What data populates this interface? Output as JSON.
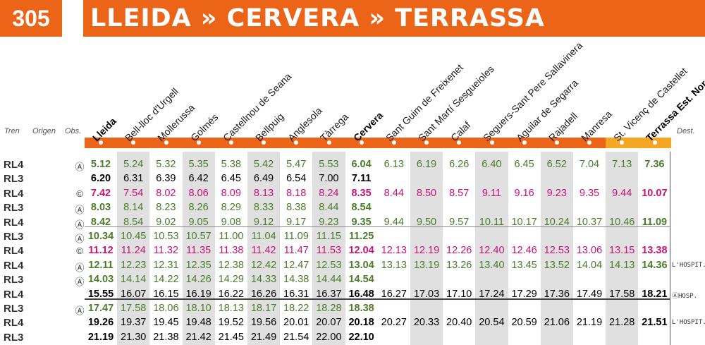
{
  "route_number": "305",
  "route_title": "LLEIDA » CERVERA » TERRASSA",
  "headers": {
    "train": "Tren",
    "origin": "Origen",
    "obs": "Obs.",
    "dest": "Dest."
  },
  "stations": [
    "Lleida",
    "Bell-lloc d'Urgell",
    "Mollerussa",
    "Golmés",
    "Castellnou de Seana",
    "Bellpuig",
    "Anglesola",
    "Tàrrega",
    "Cervera",
    "Sant Guim de Freixenet",
    "Sant Martí Sesgueioles",
    "Calaf",
    "Seguers-Sant Pere Sallavinera",
    "Aguilar de Segarra",
    "Rajadell",
    "Manresa",
    "St. Vicenç de Castellet",
    "Terrassa Est. Nord"
  ],
  "bold_stations": [
    0,
    8,
    17
  ],
  "highlight_stations": [
    16,
    17
  ],
  "colors": {
    "orange": "#ec6418",
    "highlight": "#f5a623",
    "green": "#4a7c2a",
    "magenta": "#cc1177",
    "black": "#000000"
  },
  "rows": [
    {
      "train": "RL4",
      "obs": "Ⓐ",
      "dest": "",
      "color": "green",
      "times": [
        "5.12",
        "5.24",
        "5.32",
        "5.35",
        "5.38",
        "5.42",
        "5.47",
        "5.53",
        "6.04",
        "6.13",
        "6.19",
        "6.26",
        "6.40",
        "6.45",
        "6.52",
        "7.04",
        "7.13",
        "7.36"
      ]
    },
    {
      "train": "RL3",
      "obs": "",
      "dest": "",
      "color": "black",
      "times": [
        "6.20",
        "6.31",
        "6.39",
        "6.42",
        "6.45",
        "6.49",
        "6.54",
        "7.00",
        "7.11",
        "",
        "",
        "",
        "",
        "",
        "",
        "",
        "",
        ""
      ]
    },
    {
      "train": "RL4",
      "obs": "©",
      "dest": "",
      "color": "magenta",
      "times": [
        "7.42",
        "7.54",
        "8.02",
        "8.06",
        "8.09",
        "8.13",
        "8.18",
        "8.24",
        "8.35",
        "8.44",
        "8.50",
        "8.57",
        "9.11",
        "9.16",
        "9.23",
        "9.35",
        "9.44",
        "10.07"
      ]
    },
    {
      "train": "RL3",
      "obs": "Ⓐ",
      "dest": "",
      "color": "green",
      "times": [
        "8.03",
        "8.14",
        "8.23",
        "8.26",
        "8.29",
        "8.33",
        "8.38",
        "8.44",
        "8.54",
        "",
        "",
        "",
        "",
        "",
        "",
        "",
        "",
        ""
      ]
    },
    {
      "train": "RL4",
      "obs": "Ⓐ",
      "dest": "",
      "color": "green",
      "times": [
        "8.42",
        "8.54",
        "9.02",
        "9.05",
        "9.08",
        "9.12",
        "9.17",
        "9.23",
        "9.35",
        "9.44",
        "9.50",
        "9.57",
        "10.11",
        "10.17",
        "10.24",
        "10.37",
        "10.46",
        "11.09"
      ]
    },
    {
      "train": "RL3",
      "obs": "Ⓐ",
      "dest": "",
      "color": "green",
      "times": [
        "10.34",
        "10.45",
        "10.53",
        "10.57",
        "11.00",
        "11.04",
        "11.09",
        "11.15",
        "11.25",
        "",
        "",
        "",
        "",
        "",
        "",
        "",
        "",
        ""
      ]
    },
    {
      "train": "RL4",
      "obs": "©",
      "dest": "",
      "color": "magenta",
      "times": [
        "11.12",
        "11.24",
        "11.32",
        "11.35",
        "11.38",
        "11.42",
        "11.47",
        "11.53",
        "12.04",
        "12.13",
        "12.19",
        "12.26",
        "12.40",
        "12.46",
        "12.53",
        "13.06",
        "13.15",
        "13.38"
      ]
    },
    {
      "train": "RL4",
      "obs": "Ⓐ",
      "dest": "L'HOSPIT.",
      "color": "green",
      "times": [
        "12.11",
        "12.23",
        "12.31",
        "12.35",
        "12.38",
        "12.42",
        "12.47",
        "12.53",
        "13.04",
        "13.13",
        "13.19",
        "13.26",
        "13.40",
        "13.45",
        "13.52",
        "14.04",
        "14.13",
        "14.36"
      ]
    },
    {
      "train": "RL3",
      "obs": "Ⓐ",
      "dest": "",
      "color": "green",
      "times": [
        "14.03",
        "14.14",
        "14.22",
        "14.26",
        "14.29",
        "14.33",
        "14.38",
        "14.44",
        "14.54",
        "",
        "",
        "",
        "",
        "",
        "",
        "",
        "",
        ""
      ]
    },
    {
      "train": "RL4",
      "obs": "",
      "dest": "ⒶHOSP.",
      "color": "black",
      "times": [
        "15.55",
        "16.07",
        "16.15",
        "16.19",
        "16.22",
        "16.26",
        "16.31",
        "16.37",
        "16.48",
        "16.27",
        "17.03",
        "17.10",
        "17.24",
        "17.29",
        "17.36",
        "17.49",
        "17.58",
        "18.21"
      ]
    },
    {
      "train": "RL3",
      "obs": "Ⓐ",
      "dest": "",
      "color": "green",
      "times": [
        "17.47",
        "17.58",
        "18.06",
        "18.10",
        "18.13",
        "18.17",
        "18.22",
        "18.28",
        "18.38",
        "",
        "",
        "",
        "",
        "",
        "",
        "",
        "",
        ""
      ]
    },
    {
      "train": "RL4",
      "obs": "",
      "dest": "L'HOSPIT.",
      "color": "black",
      "times": [
        "19.26",
        "19.37",
        "19.45",
        "19.48",
        "19.52",
        "19.56",
        "20.01",
        "20.07",
        "20.18",
        "20.27",
        "20.33",
        "20.40",
        "20.54",
        "20.59",
        "21.06",
        "21.19",
        "21.28",
        "21.51"
      ]
    },
    {
      "train": "RL3",
      "obs": "",
      "dest": "",
      "color": "black",
      "times": [
        "21.19",
        "21.30",
        "21.38",
        "21.42",
        "21.45",
        "21.49",
        "21.54",
        "22.00",
        "22.10",
        "",
        "",
        "",
        "",
        "",
        "",
        "",
        "",
        ""
      ]
    }
  ]
}
